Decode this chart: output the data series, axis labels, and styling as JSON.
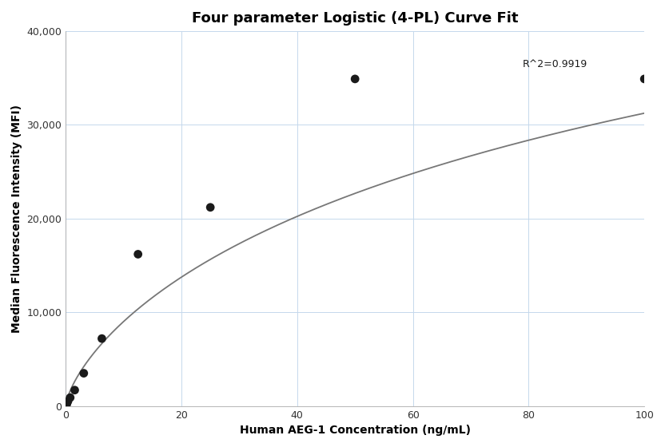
{
  "title": "Four parameter Logistic (4-PL) Curve Fit",
  "xlabel": "Human AEG-1 Concentration (ng/mL)",
  "ylabel": "Median Fluorescence Intensity (MFI)",
  "scatter_x": [
    0.195,
    0.39,
    0.78,
    1.56,
    3.125,
    6.25,
    12.5,
    25.0,
    50.0,
    100.0
  ],
  "scatter_y": [
    200,
    500,
    900,
    1700,
    3500,
    7200,
    16200,
    21200,
    34900,
    34900
  ],
  "xlim": [
    0,
    100
  ],
  "ylim": [
    0,
    40000
  ],
  "xticks": [
    0,
    20,
    40,
    60,
    80,
    100
  ],
  "yticks": [
    0,
    10000,
    20000,
    30000,
    40000
  ],
  "r_squared": "R^2=0.9919",
  "dot_color": "#1a1a1a",
  "dot_size": 60,
  "curve_color": "#777777",
  "background_color": "#ffffff",
  "grid_color": "#c5d8ec",
  "title_fontsize": 13,
  "label_fontsize": 10,
  "annotation_fontsize": 9,
  "curve_A": 50,
  "curve_B": 0.72,
  "curve_C": 160,
  "curve_D": 75000
}
